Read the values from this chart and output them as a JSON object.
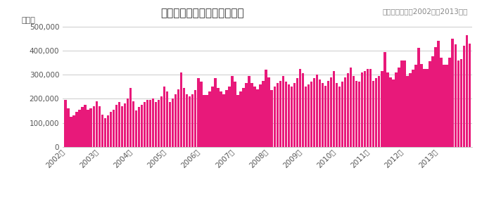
{
  "title": "フィリピンへ渡航する外国人",
  "subtitle": "（月次データ：2002年～2013年）",
  "ylabel": "（人）",
  "bar_color": "#E8197A",
  "background_color": "#ffffff",
  "grid_color": "#cccccc",
  "ylim": [
    0,
    500000
  ],
  "yticks": [
    0,
    100000,
    200000,
    300000,
    400000,
    500000
  ],
  "values": [
    195000,
    160000,
    125000,
    130000,
    145000,
    155000,
    165000,
    175000,
    155000,
    160000,
    170000,
    190000,
    170000,
    135000,
    120000,
    130000,
    145000,
    155000,
    175000,
    185000,
    170000,
    180000,
    200000,
    245000,
    190000,
    150000,
    165000,
    175000,
    185000,
    195000,
    195000,
    200000,
    185000,
    195000,
    210000,
    250000,
    230000,
    185000,
    200000,
    220000,
    240000,
    310000,
    245000,
    220000,
    210000,
    220000,
    235000,
    285000,
    270000,
    215000,
    215000,
    230000,
    250000,
    285000,
    245000,
    230000,
    220000,
    235000,
    250000,
    295000,
    270000,
    215000,
    230000,
    245000,
    265000,
    295000,
    265000,
    250000,
    240000,
    260000,
    275000,
    320000,
    290000,
    235000,
    250000,
    265000,
    275000,
    295000,
    270000,
    260000,
    250000,
    265000,
    285000,
    325000,
    305000,
    250000,
    260000,
    270000,
    285000,
    300000,
    280000,
    265000,
    255000,
    275000,
    290000,
    315000,
    265000,
    250000,
    270000,
    290000,
    305000,
    330000,
    295000,
    275000,
    270000,
    310000,
    315000,
    325000,
    325000,
    275000,
    285000,
    295000,
    315000,
    395000,
    310000,
    290000,
    280000,
    310000,
    330000,
    360000,
    360000,
    295000,
    305000,
    320000,
    340000,
    410000,
    345000,
    325000,
    325000,
    355000,
    375000,
    415000,
    440000,
    370000,
    340000,
    340000,
    370000,
    450000,
    425000,
    360000,
    365000,
    420000,
    465000,
    430000
  ],
  "x_tick_positions": [
    0,
    12,
    24,
    36,
    48,
    60,
    72,
    84,
    96,
    108,
    120,
    132
  ],
  "x_tick_labels": [
    "2002年",
    "2003年",
    "2004年",
    "2005年",
    "2006年",
    "2007年",
    "2008年",
    "2009年",
    "2010年",
    "2011年",
    "2012年",
    "2013年"
  ]
}
